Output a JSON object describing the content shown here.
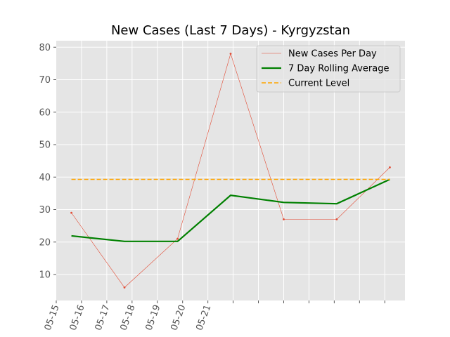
{
  "chart_data": {
    "type": "line",
    "title": "New Cases (Last 7 Days) - Kyrgyzstan",
    "xlabel": "",
    "ylabel": "",
    "x_tick_labels": [
      "05-15",
      "05-16",
      "05-17",
      "05-18",
      "05-19",
      "05-20",
      "05-21"
    ],
    "xlim": [
      0,
      13.8
    ],
    "ylim": [
      2,
      82
    ],
    "y_ticks": [
      10,
      20,
      30,
      40,
      50,
      60,
      70,
      80
    ],
    "grid": true,
    "legend_position": "top-right",
    "series": [
      {
        "name": "New Cases Per Day",
        "color": "#e24a33",
        "style": "thin-line-with-markers",
        "x": [
          0.6,
          2.7,
          4.8,
          6.9,
          9.0,
          11.1,
          13.2
        ],
        "values": [
          29,
          6,
          21,
          78,
          27,
          27,
          43
        ]
      },
      {
        "name": "7 Day Rolling Average",
        "color": "#008000",
        "style": "thick-line",
        "x": [
          0.6,
          2.7,
          4.8,
          6.9,
          9.0,
          11.1,
          13.2
        ],
        "values": [
          21.9,
          20.2,
          20.2,
          34.4,
          32.2,
          31.8,
          39.3
        ]
      },
      {
        "name": "Current Level",
        "color": "#ffa500",
        "style": "dashed-line",
        "x": [
          0.6,
          13.2
        ],
        "values": [
          39.3,
          39.3
        ]
      }
    ]
  }
}
